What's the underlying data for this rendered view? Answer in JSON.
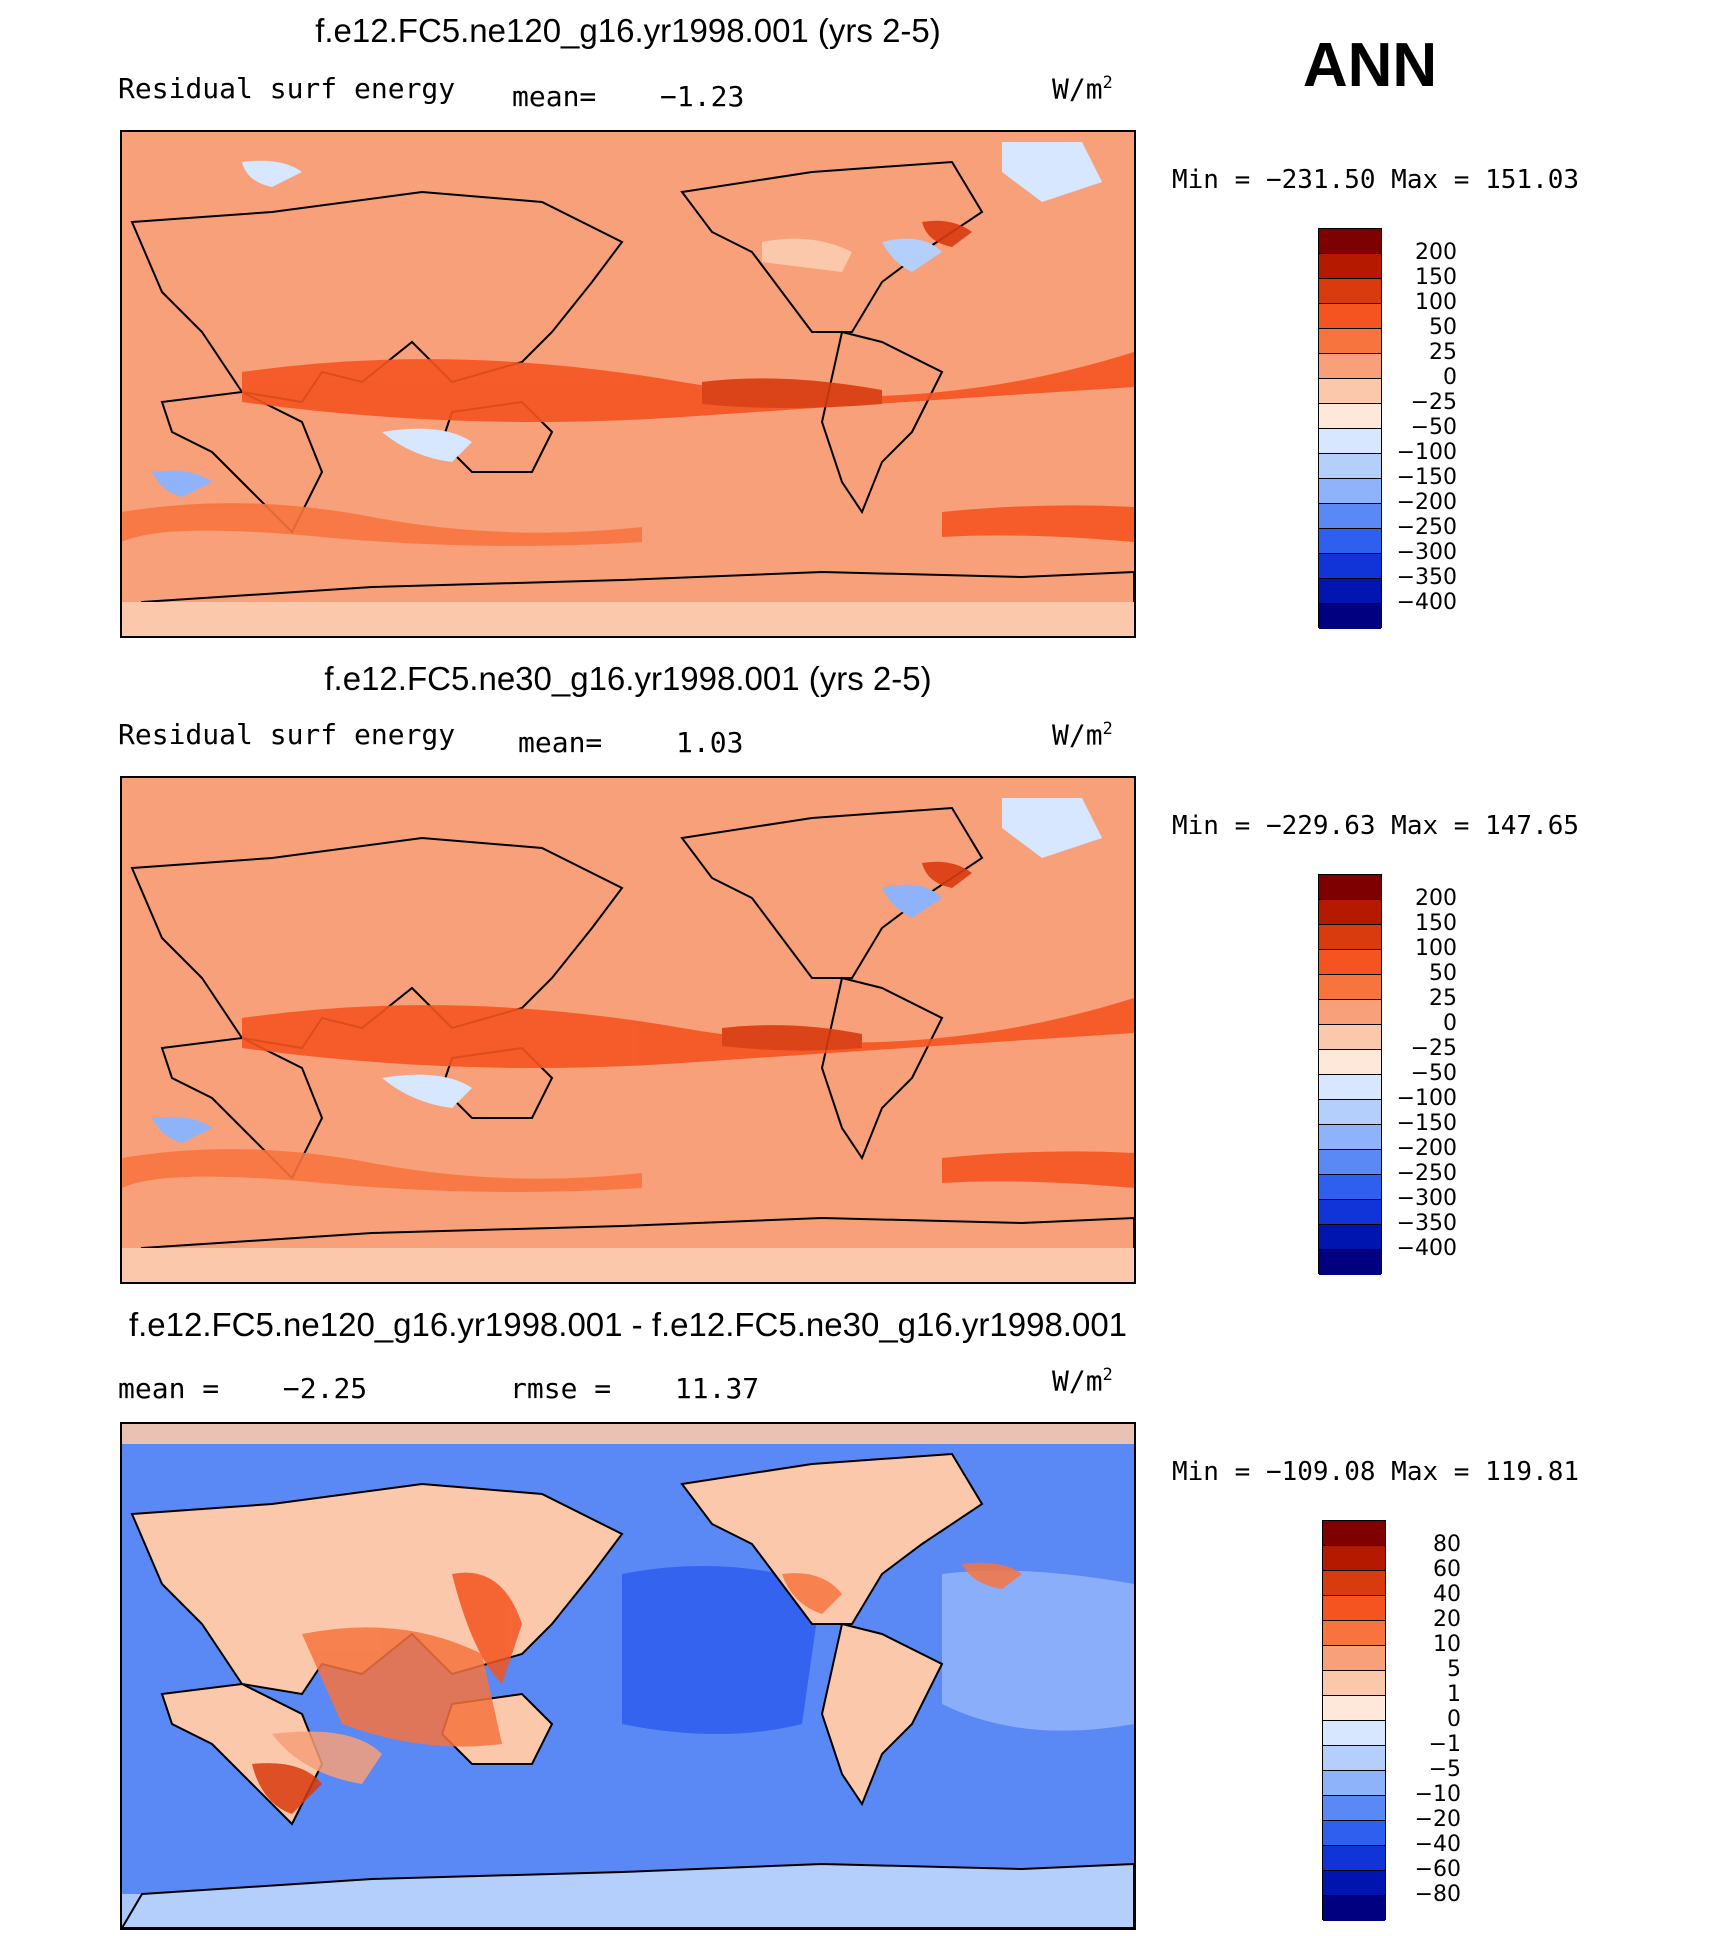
{
  "season": "ANN",
  "units_base": "W/m",
  "units_exp": "2",
  "panels": [
    {
      "title": "f.e12.FC5.ne120_g16.yr1998.001 (yrs 2-5)",
      "left_label": "Residual surf energy",
      "mid_label": "mean=",
      "mid_value": "−1.23",
      "min_label": "Min",
      "min_value": "−231.50",
      "max_label": "Max",
      "max_value": "151.03",
      "scale": "abs"
    },
    {
      "title": "f.e12.FC5.ne30_g16.yr1998.001 (yrs 2-5)",
      "left_label": "Residual surf energy",
      "mid_label": "mean=",
      "mid_value": "1.03",
      "min_label": "Min",
      "min_value": "−229.63",
      "max_label": "Max",
      "max_value": "147.65",
      "scale": "abs"
    },
    {
      "title": "f.e12.FC5.ne120_g16.yr1998.001 - f.e12.FC5.ne30_g16.yr1998.001",
      "left_label": "mean =",
      "left_value": "−2.25",
      "mid_label": "rmse =",
      "mid_value": "11.37",
      "min_label": "Min",
      "min_value": "−109.08",
      "max_label": "Max",
      "max_value": "119.81",
      "scale": "diff"
    }
  ],
  "chart_data": {
    "type": "heatmap",
    "description_units": "W/m2",
    "scales": {
      "abs": {
        "labels": [
          "200",
          "150",
          "100",
          "50",
          "25",
          "0",
          "−25",
          "−50",
          "−100",
          "−150",
          "−200",
          "−250",
          "−300",
          "−350",
          "−400"
        ],
        "colors": [
          "#7f0000",
          "#b51a00",
          "#d93a0e",
          "#f55420",
          "#f7743f",
          "#f7a07a",
          "#fbc8ac",
          "#fde8da",
          "#d6e7ff",
          "#b4cffc",
          "#8fb3fa",
          "#5a88f5",
          "#2f5fee",
          "#1134d8",
          "#0015b0",
          "#000080"
        ]
      },
      "diff": {
        "labels": [
          "80",
          "60",
          "40",
          "20",
          "10",
          "5",
          "1",
          "0",
          "−1",
          "−5",
          "−10",
          "−20",
          "−40",
          "−60",
          "−80"
        ],
        "colors": [
          "#7f0000",
          "#b51a00",
          "#d93a0e",
          "#f55420",
          "#f7743f",
          "#f7a07a",
          "#fbc8ac",
          "#fde8da",
          "#d6e7ff",
          "#b4cffc",
          "#8fb3fa",
          "#5a88f5",
          "#2f5fee",
          "#1134d8",
          "#0015b0",
          "#000080"
        ]
      }
    },
    "ranges": [
      {
        "min": -231.5,
        "max": 151.03
      },
      {
        "min": -229.63,
        "max": 147.65
      },
      {
        "min": -109.08,
        "max": 119.81
      }
    ]
  }
}
